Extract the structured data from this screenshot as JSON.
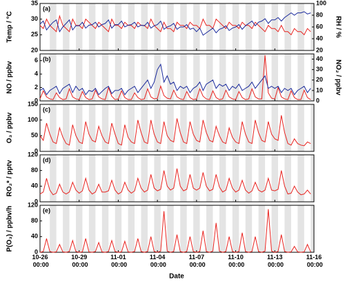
{
  "chart_data": {
    "type": "line",
    "xlabel": "Date",
    "xlim": [
      "10-26 00:00",
      "11-16 00:00"
    ],
    "xticks": [
      "10-26 00:00",
      "10-29 00:00",
      "11-01 00:00",
      "11-04 00:00",
      "11-07 00:00",
      "11-10 00:00",
      "11-13 00:00",
      "11-16 00:00"
    ],
    "x": [
      "10-26 00:00",
      "10-26 06:00",
      "10-26 12:00",
      "10-26 18:00",
      "10-27 00:00",
      "10-27 06:00",
      "10-27 12:00",
      "10-27 18:00",
      "10-28 00:00",
      "10-28 06:00",
      "10-28 12:00",
      "10-28 18:00",
      "10-29 00:00",
      "10-29 06:00",
      "10-29 12:00",
      "10-29 18:00",
      "10-30 00:00",
      "10-30 06:00",
      "10-30 12:00",
      "10-30 18:00",
      "10-31 00:00",
      "10-31 06:00",
      "10-31 12:00",
      "10-31 18:00",
      "11-01 00:00",
      "11-01 06:00",
      "11-01 12:00",
      "11-01 18:00",
      "11-02 00:00",
      "11-02 06:00",
      "11-02 12:00",
      "11-02 18:00",
      "11-03 00:00",
      "11-03 06:00",
      "11-03 12:00",
      "11-03 18:00",
      "11-04 00:00",
      "11-04 06:00",
      "11-04 12:00",
      "11-04 18:00",
      "11-05 00:00",
      "11-05 06:00",
      "11-05 12:00",
      "11-05 18:00",
      "11-06 00:00",
      "11-06 06:00",
      "11-06 12:00",
      "11-06 18:00",
      "11-07 00:00",
      "11-07 06:00",
      "11-07 12:00",
      "11-07 18:00",
      "11-08 00:00",
      "11-08 06:00",
      "11-08 12:00",
      "11-08 18:00",
      "11-09 00:00",
      "11-09 06:00",
      "11-09 12:00",
      "11-09 18:00",
      "11-10 00:00",
      "11-10 06:00",
      "11-10 12:00",
      "11-10 18:00",
      "11-11 00:00",
      "11-11 06:00",
      "11-11 12:00",
      "11-11 18:00",
      "11-12 00:00",
      "11-12 06:00",
      "11-12 12:00",
      "11-12 18:00",
      "11-13 00:00",
      "11-13 06:00",
      "11-13 12:00",
      "11-13 18:00",
      "11-14 00:00",
      "11-14 06:00",
      "11-14 12:00",
      "11-14 18:00",
      "11-15 00:00",
      "11-15 06:00",
      "11-15 12:00",
      "11-15 18:00"
    ],
    "panels": [
      {
        "label": "(a)",
        "ylabel": "Temp / °C",
        "ylim": [
          20,
          35
        ],
        "yticks": [
          20,
          25,
          30,
          35
        ],
        "y2label": "RH / %",
        "y2lim": [
          20,
          100
        ],
        "y2ticks": [
          20,
          40,
          60,
          80,
          100
        ],
        "series": [
          {
            "color": "#e8231f",
            "axis": "y",
            "values": [
              28,
              27,
              30,
              28,
              27,
              26,
              31,
              28,
              27,
              26,
              30,
              28,
              28,
              27,
              30,
              29,
              28,
              27,
              29,
              28,
              27,
              26,
              30,
              28,
              28,
              27,
              29,
              28,
              28,
              27,
              29,
              28,
              28,
              27,
              30,
              28,
              27,
              26,
              29,
              27,
              27,
              26,
              29,
              28,
              28,
              27,
              29,
              28,
              28,
              27,
              30,
              28,
              28,
              27,
              30,
              29,
              28,
              27,
              29,
              28,
              28,
              27,
              29,
              28,
              28,
              27,
              29,
              28,
              27,
              26,
              28,
              27,
              27,
              26,
              28,
              26,
              26,
              25,
              27,
              26,
              26,
              25,
              27,
              26
            ]
          },
          {
            "color": "#1a2a9c",
            "axis": "y2",
            "values": [
              65,
              70,
              55,
              62,
              68,
              72,
              52,
              60,
              66,
              72,
              55,
              62,
              62,
              68,
              58,
              63,
              64,
              68,
              60,
              64,
              66,
              72,
              58,
              64,
              64,
              70,
              60,
              63,
              64,
              68,
              60,
              63,
              62,
              68,
              58,
              62,
              64,
              70,
              56,
              60,
              62,
              66,
              56,
              60,
              60,
              64,
              56,
              58,
              52,
              58,
              46,
              50,
              54,
              58,
              50,
              56,
              58,
              62,
              54,
              58,
              60,
              64,
              56,
              62,
              66,
              70,
              62,
              68,
              70,
              74,
              66,
              72,
              72,
              76,
              70,
              76,
              80,
              84,
              80,
              84,
              84,
              86,
              82,
              84
            ]
          }
        ]
      },
      {
        "label": "(b)",
        "ylabel": "NO / ppbv",
        "ylim": [
          0,
          7
        ],
        "yticks": [
          0,
          2,
          4,
          6
        ],
        "y2label": "NO₂ / ppbv",
        "y2lim": [
          0,
          45
        ],
        "y2ticks": [
          0,
          10,
          20,
          30,
          40
        ],
        "series": [
          {
            "color": "#e8231f",
            "axis": "y",
            "values": [
              0.3,
              1.5,
              0.6,
              0.3,
              0.2,
              1.2,
              0.5,
              0.2,
              0.3,
              1.8,
              0.6,
              0.3,
              0.2,
              1.4,
              0.5,
              0.2,
              0.3,
              1.6,
              0.6,
              0.3,
              0.2,
              2.0,
              0.7,
              0.2,
              0.3,
              1.5,
              0.5,
              0.2,
              0.2,
              1.2,
              0.5,
              0.2,
              0.3,
              1.8,
              0.6,
              0.3,
              0.4,
              2.2,
              0.8,
              0.4,
              0.3,
              1.6,
              0.6,
              0.3,
              0.2,
              1.4,
              0.5,
              0.2,
              0.3,
              1.8,
              0.7,
              0.3,
              0.2,
              1.5,
              0.5,
              0.2,
              0.3,
              1.6,
              0.6,
              0.3,
              0.2,
              1.4,
              0.5,
              0.2,
              0.3,
              1.8,
              0.6,
              0.3,
              0.3,
              6.8,
              1.2,
              0.4,
              0.3,
              2.0,
              0.6,
              0.3,
              0.2,
              1.5,
              0.5,
              0.2,
              0.2,
              1.6,
              0.5,
              0.2
            ]
          },
          {
            "color": "#1a2a9c",
            "axis": "y2",
            "values": [
              10,
              12,
              6,
              10,
              12,
              14,
              7,
              12,
              14,
              16,
              8,
              14,
              10,
              12,
              6,
              10,
              9,
              12,
              6,
              9,
              12,
              14,
              7,
              10,
              10,
              12,
              6,
              10,
              12,
              14,
              8,
              12,
              16,
              20,
              12,
              18,
              30,
              35,
              18,
              24,
              16,
              18,
              10,
              14,
              12,
              14,
              8,
              12,
              14,
              18,
              10,
              16,
              18,
              20,
              12,
              16,
              14,
              16,
              10,
              14,
              12,
              16,
              10,
              12,
              14,
              18,
              12,
              16,
              20,
              24,
              12,
              14,
              12,
              14,
              8,
              12,
              10,
              12,
              6,
              10,
              12,
              14,
              8,
              12
            ]
          }
        ]
      },
      {
        "label": "(c)",
        "ylabel": "O₃ / ppbv",
        "ylim": [
          0,
          150
        ],
        "yticks": [
          0,
          50,
          100,
          150
        ],
        "series": [
          {
            "color": "#e8231f",
            "axis": "y",
            "values": [
              50,
              35,
              90,
              55,
              30,
              25,
              75,
              45,
              25,
              20,
              85,
              50,
              30,
              25,
              95,
              55,
              35,
              30,
              80,
              50,
              30,
              25,
              90,
              55,
              25,
              20,
              85,
              45,
              30,
              25,
              100,
              60,
              30,
              25,
              100,
              55,
              30,
              25,
              95,
              50,
              35,
              30,
              105,
              60,
              30,
              25,
              95,
              55,
              35,
              30,
              100,
              60,
              35,
              30,
              80,
              50,
              30,
              25,
              75,
              45,
              30,
              25,
              95,
              55,
              30,
              25,
              100,
              60,
              35,
              30,
              95,
              55,
              40,
              35,
              115,
              60,
              25,
              20,
              40,
              25,
              20,
              18,
              30,
              25
            ]
          }
        ]
      },
      {
        "label": "(d)",
        "ylabel": "RO₂* / pptv",
        "ylim": [
          0,
          120
        ],
        "yticks": [
          0,
          40,
          80,
          120
        ],
        "series": [
          {
            "color": "#e8231f",
            "axis": "y",
            "values": [
              20,
              25,
              60,
              30,
              18,
              22,
              45,
              25,
              20,
              25,
              50,
              30,
              22,
              28,
              60,
              30,
              20,
              25,
              45,
              25,
              25,
              28,
              55,
              30,
              20,
              25,
              50,
              30,
              22,
              28,
              60,
              35,
              25,
              30,
              70,
              35,
              28,
              32,
              80,
              40,
              30,
              35,
              85,
              40,
              28,
              32,
              70,
              35,
              30,
              35,
              75,
              40,
              28,
              32,
              70,
              38,
              25,
              30,
              60,
              35,
              25,
              30,
              55,
              30,
              22,
              28,
              50,
              30,
              25,
              30,
              60,
              30,
              28,
              32,
              80,
              40,
              20,
              22,
              40,
              25,
              18,
              20,
              30,
              20
            ]
          }
        ]
      },
      {
        "label": "(e)",
        "ylabel": "P(O₃) / ppbv/h",
        "ylim": [
          0,
          120
        ],
        "yticks": [
          0,
          40,
          80,
          120
        ],
        "series": [
          {
            "color": "#e8231f",
            "axis": "y",
            "values": [
              0,
              2,
              35,
              2,
              0,
              1,
              20,
              1,
              0,
              2,
              30,
              2,
              0,
              1,
              35,
              1,
              0,
              2,
              25,
              1,
              0,
              2,
              30,
              2,
              0,
              1,
              28,
              1,
              0,
              2,
              35,
              2,
              0,
              2,
              40,
              2,
              0,
              3,
              105,
              3,
              0,
              2,
              45,
              2,
              0,
              2,
              40,
              2,
              0,
              2,
              55,
              2,
              0,
              3,
              75,
              3,
              0,
              2,
              40,
              2,
              0,
              2,
              50,
              2,
              0,
              2,
              40,
              2,
              0,
              3,
              110,
              3,
              0,
              2,
              45,
              2,
              0,
              1,
              15,
              1,
              0,
              1,
              20,
              1
            ]
          }
        ]
      }
    ]
  }
}
